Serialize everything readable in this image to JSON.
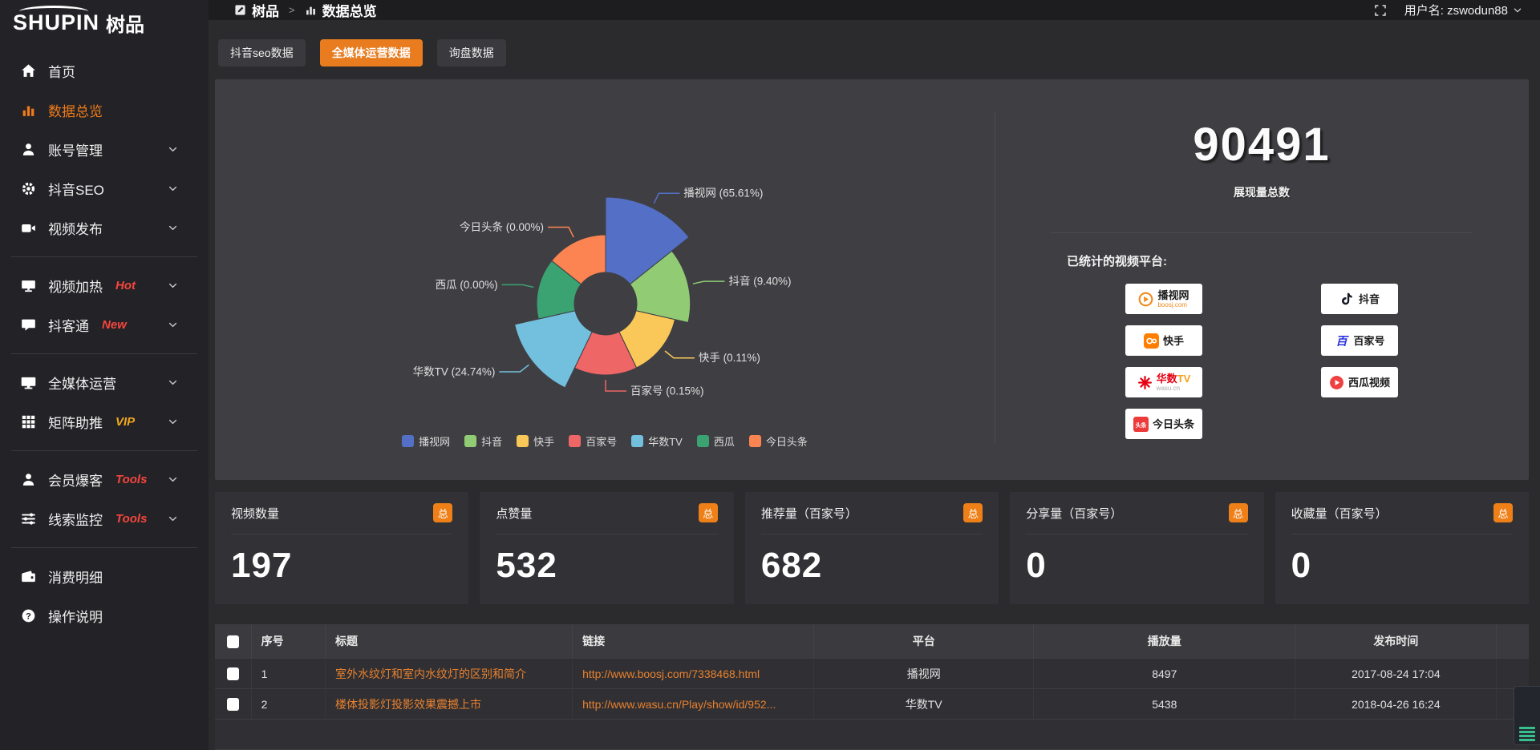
{
  "topbar": {
    "logo_text": "SHUPIN",
    "logo_suffix": "树品",
    "breadcrumb": [
      {
        "key": "shupin",
        "label": "树品",
        "icon": "app-square-icon"
      },
      {
        "key": "data-overview",
        "label": "数据总览",
        "icon": "bar-chart-icon"
      }
    ],
    "breadcrumb_separator": ">",
    "username": "用户名: zswodun88"
  },
  "sidebar": {
    "groups": [
      {
        "items": [
          {
            "key": "home",
            "label": "首页",
            "icon": "home-icon",
            "active": false,
            "chevron": false
          },
          {
            "key": "data-overview",
            "label": "数据总览",
            "icon": "bar-chart-icon",
            "active": true,
            "chevron": false
          },
          {
            "key": "account-management",
            "label": "账号管理",
            "icon": "user-icon",
            "chevron": true
          },
          {
            "key": "douyin-seo",
            "label": "抖音SEO",
            "icon": "gear-icon",
            "chevron": true
          },
          {
            "key": "video-publish",
            "label": "视频发布",
            "icon": "video-camera-icon",
            "chevron": true
          }
        ]
      },
      {
        "items": [
          {
            "key": "video-heating",
            "label": "视频加热",
            "icon": "monitor-icon",
            "chevron": true,
            "tag": "Hot",
            "tag_color": "red"
          },
          {
            "key": "douketong",
            "label": "抖客通",
            "icon": "chat-icon",
            "chevron": true,
            "tag": "New",
            "tag_color": "red"
          }
        ]
      },
      {
        "items": [
          {
            "key": "all-media-operation",
            "label": "全媒体运营",
            "icon": "display-icon",
            "chevron": true
          },
          {
            "key": "matrix-boost",
            "label": "矩阵助推",
            "icon": "grid-icon",
            "chevron": true,
            "tag": "VIP",
            "tag_color": "orange"
          }
        ]
      },
      {
        "items": [
          {
            "key": "member-baoke",
            "label": "会员爆客",
            "icon": "member-icon",
            "chevron": true,
            "tag": "Tools",
            "tag_color": "red"
          },
          {
            "key": "lead-monitoring",
            "label": "线索监控",
            "icon": "sliders-icon",
            "chevron": true,
            "tag": "Tools",
            "tag_color": "red"
          }
        ]
      },
      {
        "items": [
          {
            "key": "consumption-details",
            "label": "消费明细",
            "icon": "wallet-icon",
            "chevron": false
          },
          {
            "key": "operation-guide",
            "label": "操作说明",
            "icon": "help-icon",
            "chevron": false
          }
        ]
      }
    ]
  },
  "tabs": [
    {
      "key": "douyin-seo-data",
      "label": "抖音seo数据",
      "active": false
    },
    {
      "key": "all-media-operation-data",
      "label": "全媒体运营数据",
      "active": true
    },
    {
      "key": "inquiry-data",
      "label": "询盘数据",
      "active": false
    }
  ],
  "chart_data": {
    "type": "pie",
    "subtype": "nightingale-rose",
    "label_format": "{name} ({pct}%)",
    "legend_position": "bottom",
    "items": [
      {
        "name": "播视网",
        "pct": 65.61,
        "color": "#5470c6"
      },
      {
        "name": "抖音",
        "pct": 9.4,
        "color": "#91cc75"
      },
      {
        "name": "快手",
        "pct": 0.11,
        "color": "#fac858"
      },
      {
        "name": "百家号",
        "pct": 0.15,
        "color": "#ee6666"
      },
      {
        "name": "华数TV",
        "pct": 24.74,
        "color": "#73c0de"
      },
      {
        "name": "西瓜",
        "pct": 0.0,
        "color": "#3ba272"
      },
      {
        "name": "今日头条",
        "pct": 0.0,
        "color": "#fc8452"
      }
    ]
  },
  "summary": {
    "total_value": "90491",
    "total_label": "展现量总数",
    "platforms_label": "已统计的视频平台:",
    "platform_badges": [
      {
        "key": "boosj",
        "icon": "boosj-logo",
        "name": "播视网",
        "sub": "boosj.com",
        "sub_color": "#f28a1d"
      },
      {
        "key": "douyin",
        "icon": "douyin-logo",
        "name": "抖音"
      },
      {
        "key": "kuaishou",
        "icon": "kuaishou-logo",
        "name": "快手"
      },
      {
        "key": "baijiahao",
        "icon": "baijiahao-logo",
        "name": "百家号"
      },
      {
        "key": "wasu",
        "icon": "wasu-logo",
        "name_parts": [
          {
            "text": "华数",
            "color": "#e60012"
          },
          {
            "text": "TV",
            "color": "#f3a11a"
          }
        ],
        "sub": "wasu.cn",
        "sub_color": "#aaaaaa"
      },
      {
        "key": "xigua",
        "icon": "xigua-logo",
        "name": "西瓜视频"
      },
      {
        "key": "toutiao",
        "icon": "toutiao-logo",
        "name": "今日头条"
      }
    ]
  },
  "stat_cards": [
    {
      "key": "video-count",
      "title": "视频数量",
      "badge": "总",
      "value": "197"
    },
    {
      "key": "like-count",
      "title": "点赞量",
      "badge": "总",
      "value": "532"
    },
    {
      "key": "recommend-count",
      "title": "推荐量（百家号）",
      "badge": "总",
      "value": "682"
    },
    {
      "key": "share-count",
      "title": "分享量（百家号）",
      "badge": "总",
      "value": "0"
    },
    {
      "key": "favorite-count",
      "title": "收藏量（百家号）",
      "badge": "总",
      "value": "0"
    }
  ],
  "table": {
    "headers": [
      "序号",
      "标题",
      "链接",
      "平台",
      "播放量",
      "发布时间"
    ],
    "rows": [
      {
        "seq": "1",
        "title": "室外水纹灯和室内水纹灯的区别和简介",
        "link": "http://www.boosj.com/7338468.html",
        "platform": "播视网",
        "plays": "8497",
        "time": "2017-08-24 17:04"
      },
      {
        "seq": "2",
        "title": "楼体投影灯投影效果震撼上市",
        "link": "http://www.wasu.cn/Play/show/id/952...",
        "platform": "华数TV",
        "plays": "5438",
        "time": "2018-04-26 16:24"
      }
    ]
  },
  "accent_colors": {
    "orange": "#ef7b1a",
    "tab_active": "#e87c1f",
    "badge_total": "#ef8018",
    "link": "#e8802e",
    "tag_red": "#f5453d",
    "tag_vip": "#f0a61c"
  }
}
